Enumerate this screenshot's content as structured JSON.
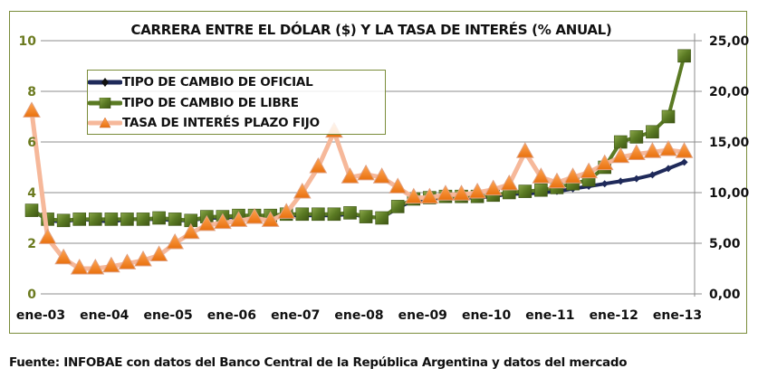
{
  "chart_data": {
    "type": "line",
    "title": "CARRERA ENTRE EL DÓLAR ($) Y LA TASA DE INTERÉS (% ANUAL)",
    "xlabel": "",
    "ylabel_left": "",
    "ylabel_right": "",
    "x_ticks": [
      "ene-03",
      "ene-04",
      "ene-05",
      "ene-06",
      "ene-07",
      "ene-08",
      "ene-09",
      "ene-10",
      "ene-11",
      "ene-12",
      "ene-13"
    ],
    "y_left_ticks": [
      "0",
      "2",
      "4",
      "6",
      "8",
      "10"
    ],
    "y_right_ticks": [
      "0,00",
      "5,00",
      "10,00",
      "15,00",
      "20,00",
      "25,00"
    ],
    "ylim_left": [
      0,
      10
    ],
    "ylim_right": [
      0,
      25
    ],
    "grid": true,
    "legend_position": "top-left",
    "x_start": "2003-01",
    "x_step": "quarter",
    "series": [
      {
        "name": "TIPO DE CAMBIO DE OFICIAL",
        "axis": "left",
        "color": "#1f2a5a",
        "marker": "diamond",
        "values": [
          3.35,
          2.9,
          2.85,
          2.95,
          2.9,
          2.85,
          2.95,
          2.95,
          2.95,
          2.9,
          2.9,
          3.0,
          3.0,
          3.05,
          3.05,
          3.05,
          3.1,
          3.1,
          3.1,
          3.1,
          3.15,
          3.05,
          3.0,
          3.4,
          3.7,
          3.75,
          3.8,
          3.8,
          3.8,
          3.85,
          3.95,
          3.95,
          4.0,
          4.05,
          4.15,
          4.25,
          4.35,
          4.45,
          4.55,
          4.7,
          4.95,
          5.2
        ]
      },
      {
        "name": "TIPO DE CAMBIO DE LIBRE",
        "axis": "left",
        "color": "#5a7a23",
        "marker": "square",
        "values": [
          3.3,
          2.95,
          2.9,
          2.95,
          2.95,
          2.95,
          2.95,
          2.95,
          3.0,
          2.95,
          2.9,
          3.05,
          3.05,
          3.1,
          3.1,
          3.1,
          3.15,
          3.15,
          3.15,
          3.15,
          3.2,
          3.05,
          3.0,
          3.45,
          3.75,
          3.8,
          3.85,
          3.85,
          3.85,
          3.9,
          4.0,
          4.05,
          4.1,
          4.2,
          4.35,
          4.5,
          5.0,
          6.0,
          6.2,
          6.4,
          7.0,
          9.4
        ]
      },
      {
        "name": "TASA DE INTERÉS PLAZO FIJO",
        "axis": "right",
        "color": "#f08020",
        "line_color": "#f6b89a",
        "marker": "triangle",
        "values": [
          18.0,
          5.5,
          3.5,
          2.5,
          2.5,
          2.7,
          3.0,
          3.3,
          3.8,
          5.0,
          6.0,
          6.8,
          7.0,
          7.2,
          7.5,
          7.2,
          8.0,
          10.0,
          12.5,
          16.0,
          11.5,
          11.8,
          11.5,
          10.5,
          9.5,
          9.5,
          9.8,
          9.8,
          10.0,
          10.3,
          10.8,
          14.0,
          11.5,
          11.0,
          11.5,
          12.0,
          12.8,
          13.5,
          13.8,
          14.0,
          14.2,
          14.0
        ]
      }
    ]
  },
  "source_note": "Fuente: INFOBAE con datos del Banco Central de la República Argentina y datos del mercado"
}
